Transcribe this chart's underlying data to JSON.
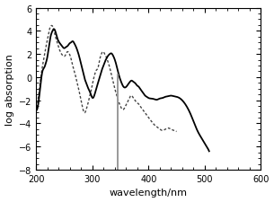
{
  "xlim": [
    200,
    600
  ],
  "ylim": [
    -8,
    6
  ],
  "xlabel": "wavelength/nm",
  "ylabel": "log absorption",
  "xticks": [
    200,
    300,
    400,
    500,
    600
  ],
  "yticks": [
    -8,
    -6,
    -4,
    -2,
    0,
    2,
    4,
    6
  ],
  "vline_x": 345,
  "vline_color": "#999999",
  "solid_color": "#000000",
  "dotted_color": "#444444",
  "bg_color": "#ffffff",
  "axis_fontsize": 8,
  "tick_fontsize": 7,
  "solid_pts": [
    [
      200,
      -2.8
    ],
    [
      205,
      -1.8
    ],
    [
      208,
      -0.5
    ],
    [
      211,
      0.5
    ],
    [
      214,
      0.8
    ],
    [
      217,
      1.2
    ],
    [
      220,
      1.8
    ],
    [
      223,
      2.8
    ],
    [
      226,
      3.6
    ],
    [
      229,
      4.0
    ],
    [
      232,
      4.15
    ],
    [
      235,
      3.8
    ],
    [
      238,
      3.3
    ],
    [
      241,
      3.0
    ],
    [
      244,
      2.8
    ],
    [
      247,
      2.6
    ],
    [
      250,
      2.5
    ],
    [
      253,
      2.6
    ],
    [
      256,
      2.7
    ],
    [
      259,
      2.9
    ],
    [
      262,
      3.0
    ],
    [
      265,
      3.1
    ],
    [
      268,
      2.9
    ],
    [
      271,
      2.6
    ],
    [
      274,
      2.2
    ],
    [
      277,
      1.7
    ],
    [
      280,
      1.1
    ],
    [
      283,
      0.5
    ],
    [
      286,
      -0.1
    ],
    [
      289,
      -0.5
    ],
    [
      292,
      -0.9
    ],
    [
      295,
      -1.2
    ],
    [
      298,
      -1.6
    ],
    [
      301,
      -1.8
    ],
    [
      304,
      -1.5
    ],
    [
      307,
      -1.0
    ],
    [
      310,
      -0.5
    ],
    [
      313,
      0.0
    ],
    [
      316,
      0.5
    ],
    [
      319,
      0.9
    ],
    [
      322,
      1.3
    ],
    [
      325,
      1.6
    ],
    [
      328,
      1.85
    ],
    [
      331,
      2.0
    ],
    [
      334,
      2.05
    ],
    [
      337,
      1.85
    ],
    [
      340,
      1.5
    ],
    [
      343,
      1.0
    ],
    [
      346,
      0.4
    ],
    [
      349,
      -0.1
    ],
    [
      352,
      -0.5
    ],
    [
      355,
      -0.8
    ],
    [
      358,
      -0.9
    ],
    [
      361,
      -0.8
    ],
    [
      364,
      -0.6
    ],
    [
      367,
      -0.4
    ],
    [
      370,
      -0.3
    ],
    [
      373,
      -0.4
    ],
    [
      376,
      -0.5
    ],
    [
      379,
      -0.7
    ],
    [
      382,
      -0.8
    ],
    [
      385,
      -1.0
    ],
    [
      388,
      -1.2
    ],
    [
      391,
      -1.4
    ],
    [
      394,
      -1.6
    ],
    [
      397,
      -1.7
    ],
    [
      400,
      -1.8
    ],
    [
      405,
      -1.85
    ],
    [
      410,
      -1.9
    ],
    [
      415,
      -1.95
    ],
    [
      420,
      -1.85
    ],
    [
      425,
      -1.8
    ],
    [
      430,
      -1.7
    ],
    [
      435,
      -1.65
    ],
    [
      440,
      -1.6
    ],
    [
      445,
      -1.65
    ],
    [
      450,
      -1.7
    ],
    [
      455,
      -1.8
    ],
    [
      460,
      -2.0
    ],
    [
      465,
      -2.3
    ],
    [
      470,
      -2.7
    ],
    [
      475,
      -3.2
    ],
    [
      480,
      -3.8
    ],
    [
      485,
      -4.4
    ],
    [
      490,
      -4.9
    ],
    [
      495,
      -5.3
    ],
    [
      500,
      -5.7
    ],
    [
      505,
      -6.1
    ],
    [
      508,
      -6.4
    ]
  ],
  "dotted_pts": [
    [
      200,
      -3.0
    ],
    [
      203,
      -2.0
    ],
    [
      206,
      -0.8
    ],
    [
      209,
      0.3
    ],
    [
      212,
      1.2
    ],
    [
      215,
      2.0
    ],
    [
      218,
      2.8
    ],
    [
      221,
      3.5
    ],
    [
      224,
      4.2
    ],
    [
      227,
      4.45
    ],
    [
      229,
      4.4
    ],
    [
      231,
      4.1
    ],
    [
      233,
      3.7
    ],
    [
      236,
      3.2
    ],
    [
      239,
      2.7
    ],
    [
      242,
      2.3
    ],
    [
      245,
      2.0
    ],
    [
      248,
      1.85
    ],
    [
      250,
      1.8
    ],
    [
      252,
      1.9
    ],
    [
      254,
      2.1
    ],
    [
      256,
      2.2
    ],
    [
      258,
      2.1
    ],
    [
      260,
      1.9
    ],
    [
      263,
      1.4
    ],
    [
      266,
      0.8
    ],
    [
      269,
      0.3
    ],
    [
      272,
      -0.3
    ],
    [
      275,
      -0.9
    ],
    [
      278,
      -1.6
    ],
    [
      281,
      -2.3
    ],
    [
      284,
      -2.9
    ],
    [
      287,
      -3.05
    ],
    [
      289,
      -2.8
    ],
    [
      292,
      -2.3
    ],
    [
      295,
      -1.7
    ],
    [
      298,
      -1.1
    ],
    [
      301,
      -0.4
    ],
    [
      304,
      0.2
    ],
    [
      307,
      0.6
    ],
    [
      310,
      0.8
    ],
    [
      313,
      1.5
    ],
    [
      316,
      2.0
    ],
    [
      319,
      2.2
    ],
    [
      322,
      2.0
    ],
    [
      325,
      1.7
    ],
    [
      328,
      1.3
    ],
    [
      331,
      0.8
    ],
    [
      334,
      0.2
    ],
    [
      337,
      -0.4
    ],
    [
      340,
      -1.0
    ],
    [
      343,
      -1.5
    ],
    [
      346,
      -2.0
    ],
    [
      349,
      -2.4
    ],
    [
      352,
      -2.7
    ],
    [
      355,
      -2.8
    ],
    [
      358,
      -2.6
    ],
    [
      361,
      -2.3
    ],
    [
      364,
      -2.0
    ],
    [
      367,
      -1.7
    ],
    [
      370,
      -1.6
    ],
    [
      373,
      -1.8
    ],
    [
      376,
      -2.0
    ],
    [
      379,
      -2.2
    ],
    [
      382,
      -2.3
    ],
    [
      385,
      -2.5
    ],
    [
      388,
      -2.7
    ],
    [
      391,
      -2.9
    ],
    [
      394,
      -3.1
    ],
    [
      397,
      -3.3
    ],
    [
      400,
      -3.5
    ],
    [
      405,
      -3.8
    ],
    [
      410,
      -4.1
    ],
    [
      415,
      -4.3
    ],
    [
      420,
      -4.5
    ],
    [
      425,
      -4.6
    ],
    [
      430,
      -4.5
    ],
    [
      435,
      -4.4
    ],
    [
      440,
      -4.5
    ],
    [
      445,
      -4.6
    ],
    [
      450,
      -4.7
    ]
  ]
}
